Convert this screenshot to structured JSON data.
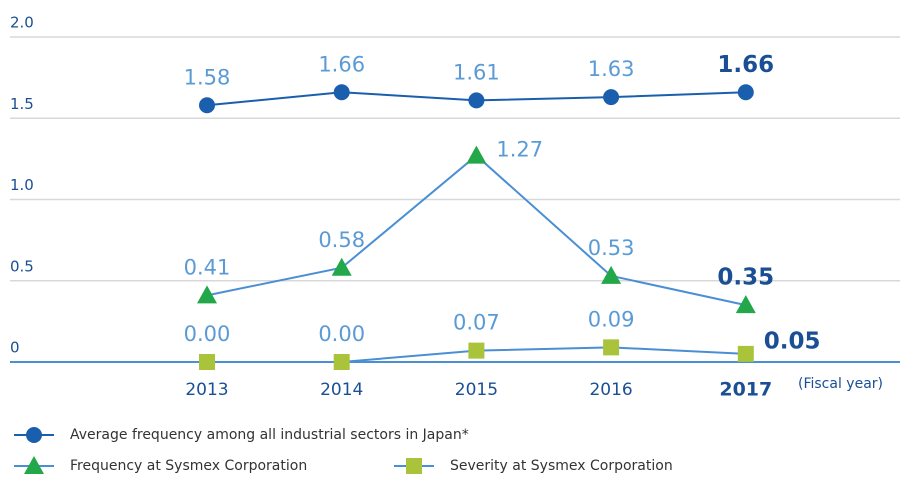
{
  "chart_data": {
    "type": "line",
    "categories": [
      "2013",
      "2014",
      "2015",
      "2016",
      "2017"
    ],
    "x_label": "(Fiscal year)",
    "ylim": [
      0,
      2
    ],
    "yticks": [
      0,
      0.5,
      {
        "value": 1,
        "label": "1.0"
      },
      1.5,
      {
        "value": 2,
        "label": "2.0"
      }
    ],
    "grid": true,
    "series": [
      {
        "name": "Average frequency among all industrial sectors in Japan*",
        "color": "#1a5fad",
        "line_color": "#1a5fad",
        "marker": "circle",
        "values": [
          1.58,
          1.66,
          1.61,
          1.63,
          1.66
        ],
        "value_labels": [
          "1.58",
          "1.66",
          "1.61",
          "1.63",
          "1.66"
        ]
      },
      {
        "name": "Frequency at Sysmex Corporation",
        "color": "#22a84a",
        "line_color": "#4a8fd4",
        "marker": "triangle",
        "values": [
          0.41,
          0.58,
          1.27,
          0.53,
          0.35
        ],
        "value_labels": [
          "0.41",
          "0.58",
          "1.27",
          "0.53",
          "0.35"
        ]
      },
      {
        "name": "Severity at Sysmex Corporation",
        "color": "#a9c43a",
        "line_color": "#4a8fd4",
        "marker": "square",
        "values": [
          0,
          0,
          0.07,
          0.09,
          0.05
        ],
        "value_labels": [
          "0.00",
          "0.00",
          "0.07",
          "0.09",
          "0.05"
        ]
      }
    ]
  }
}
